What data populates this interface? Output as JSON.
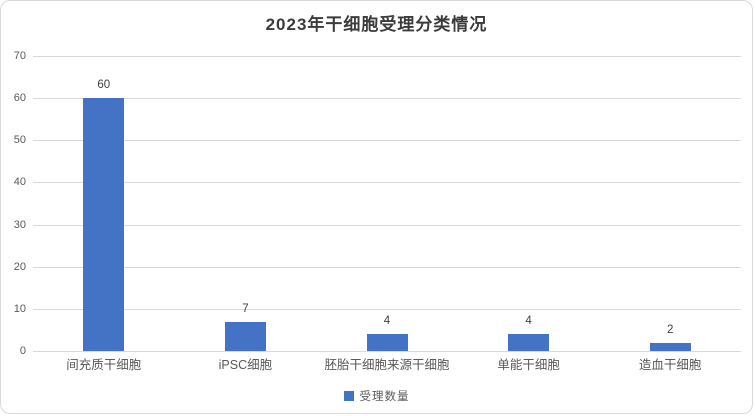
{
  "chart": {
    "title": "2023年干细胞受理分类情况",
    "legend_label": "受理数量",
    "colors": {
      "bar": "#4472C4",
      "gridline": "#D9D9D9",
      "axis_text": "#595959",
      "value_label_text": "#404040",
      "title_text": "#3B3B3B",
      "frame_border": "#D9D9D9",
      "background": "#FFFFFF"
    }
  },
  "chart_data": {
    "type": "bar",
    "title": "2023年干细胞受理分类情况",
    "categories": [
      "间充质干细胞",
      "iPSC细胞",
      "胚胎干细胞来源干细胞",
      "单能干细胞",
      "造血干细胞"
    ],
    "series": [
      {
        "name": "受理数量",
        "values": [
          60,
          7,
          4,
          4,
          2
        ]
      }
    ],
    "xlabel": "",
    "ylabel": "",
    "ylim": [
      0,
      70
    ],
    "ytick_step": 10,
    "yticks": [
      0,
      10,
      20,
      30,
      40,
      50,
      60,
      70
    ],
    "grid": true,
    "data_labels": true,
    "legend_position": "bottom"
  }
}
